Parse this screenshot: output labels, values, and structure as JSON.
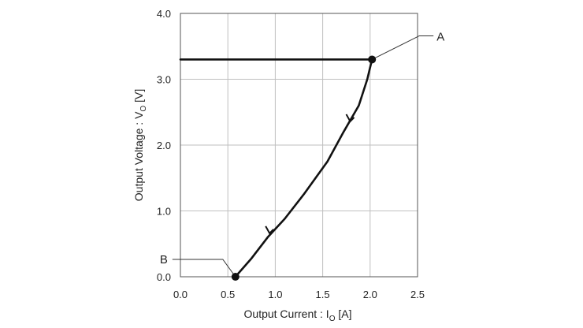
{
  "chart_data": {
    "type": "line",
    "title": "",
    "xlabel": "Output Current : I",
    "xlabel_sub": "O",
    "xlabel_unit": " [A]",
    "ylabel": "Output Voltage : V",
    "ylabel_sub": "O",
    "ylabel_unit": " [V]",
    "xlim": [
      0,
      2.5
    ],
    "ylim": [
      0,
      4.0
    ],
    "x_ticks": [
      0.0,
      0.5,
      1.0,
      1.5,
      2.0,
      2.5
    ],
    "x_tick_labels": [
      "0.0",
      "0.5",
      "1.0",
      "1.5",
      "2.0",
      "2.5"
    ],
    "y_ticks": [
      0.0,
      1.0,
      2.0,
      3.0,
      4.0
    ],
    "y_tick_labels": [
      "0.0",
      "1.0",
      "2.0",
      "3.0",
      "4.0"
    ],
    "grid": true,
    "series": [
      {
        "x": [
          0.0,
          2.02,
          1.97,
          1.88,
          1.72,
          1.55,
          1.3,
          1.1,
          0.92,
          0.75,
          0.58
        ],
        "y": [
          3.3,
          3.3,
          3.0,
          2.6,
          2.2,
          1.75,
          1.25,
          0.88,
          0.6,
          0.28,
          0.0
        ]
      }
    ],
    "arrows": [
      {
        "x": 1.79,
        "y": 2.36
      },
      {
        "x": 0.94,
        "y": 0.66
      }
    ],
    "annotations": [
      {
        "label": "A",
        "x": 2.02,
        "y": 3.3
      },
      {
        "label": "B",
        "x": 0.58,
        "y": 0.0
      }
    ]
  }
}
